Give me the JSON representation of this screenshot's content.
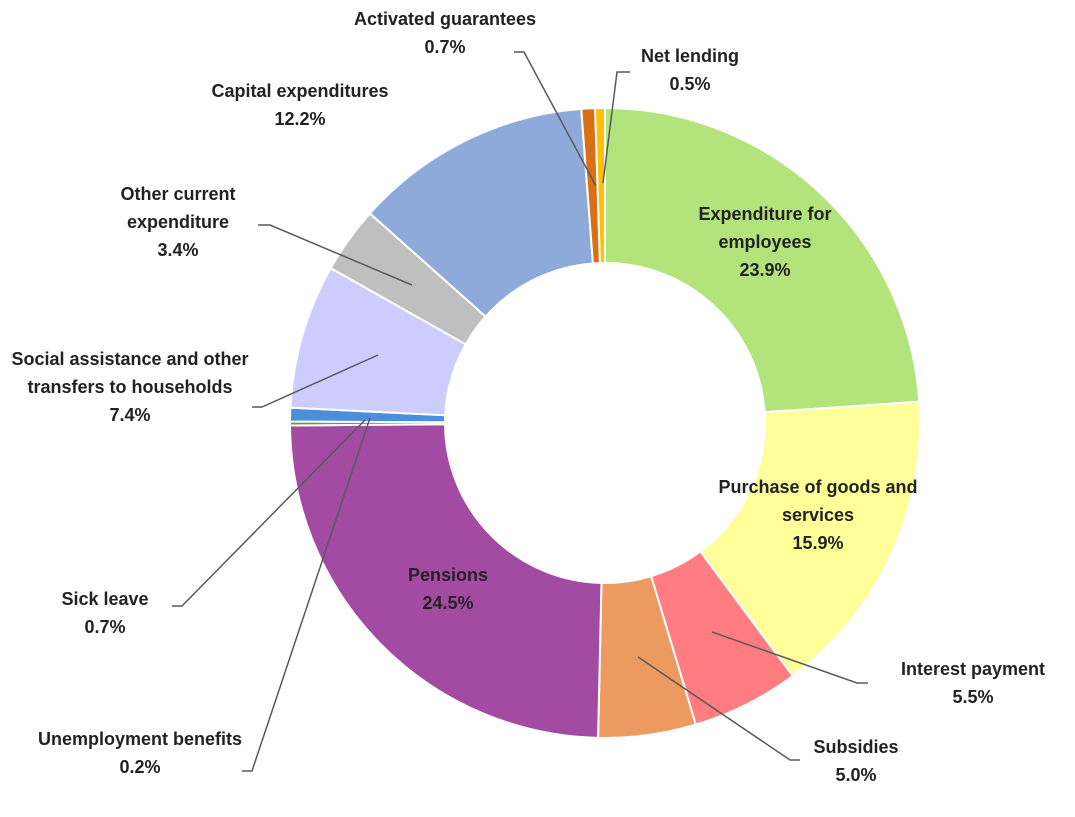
{
  "chart_data": {
    "type": "donut",
    "categories": [
      "Expenditure for employees",
      "Purchase of goods and services",
      "Interest payment",
      "Subsidies",
      "Pensions",
      "Unemployment benefits",
      "Sick leave",
      "Social assistance and other transfers to households",
      "Other current expenditure",
      "Capital expenditures",
      "Activated guarantees",
      "Net lending"
    ],
    "values": [
      23.9,
      15.9,
      5.5,
      5.0,
      24.5,
      0.2,
      0.7,
      7.4,
      3.4,
      12.2,
      0.7,
      0.5
    ],
    "value_labels": [
      "23.9%",
      "15.9%",
      "5.5%",
      "5.0%",
      "24.5%",
      "0.2%",
      "0.7%",
      "7.4%",
      "3.4%",
      "12.2%",
      "0.7%",
      "0.5%"
    ],
    "colors": [
      "#b3e37b",
      "#ffff99",
      "#ff7c80",
      "#ed9a61",
      "#a34aa3",
      "#6e9a3c",
      "#4a8fdd",
      "#ccccff",
      "#bfbfbf",
      "#8eaadb",
      "#d97016",
      "#ffc000"
    ]
  }
}
